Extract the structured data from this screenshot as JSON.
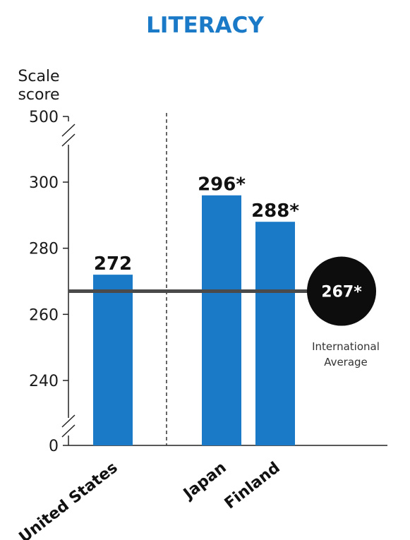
{
  "chart_data": {
    "type": "bar",
    "title": "LITERACY",
    "ylabel": [
      "Scale",
      "score"
    ],
    "categories": [
      "United States",
      "Japan",
      "Finland"
    ],
    "values": [
      272,
      296,
      288
    ],
    "value_labels": [
      "272",
      "296*",
      "288*"
    ],
    "yticks": [
      0,
      240,
      260,
      280,
      300,
      500
    ],
    "axis_breaks": [
      "between 0 and 240",
      "between 300 and 500"
    ],
    "reference_line": {
      "value": 267,
      "label": "267*",
      "caption": [
        "International",
        "Average"
      ]
    },
    "colors": {
      "bar": "#1a7ac7",
      "title": "#1a7ac7",
      "reference_line": "#4a4a4a",
      "badge": "#0d0d0d"
    }
  }
}
